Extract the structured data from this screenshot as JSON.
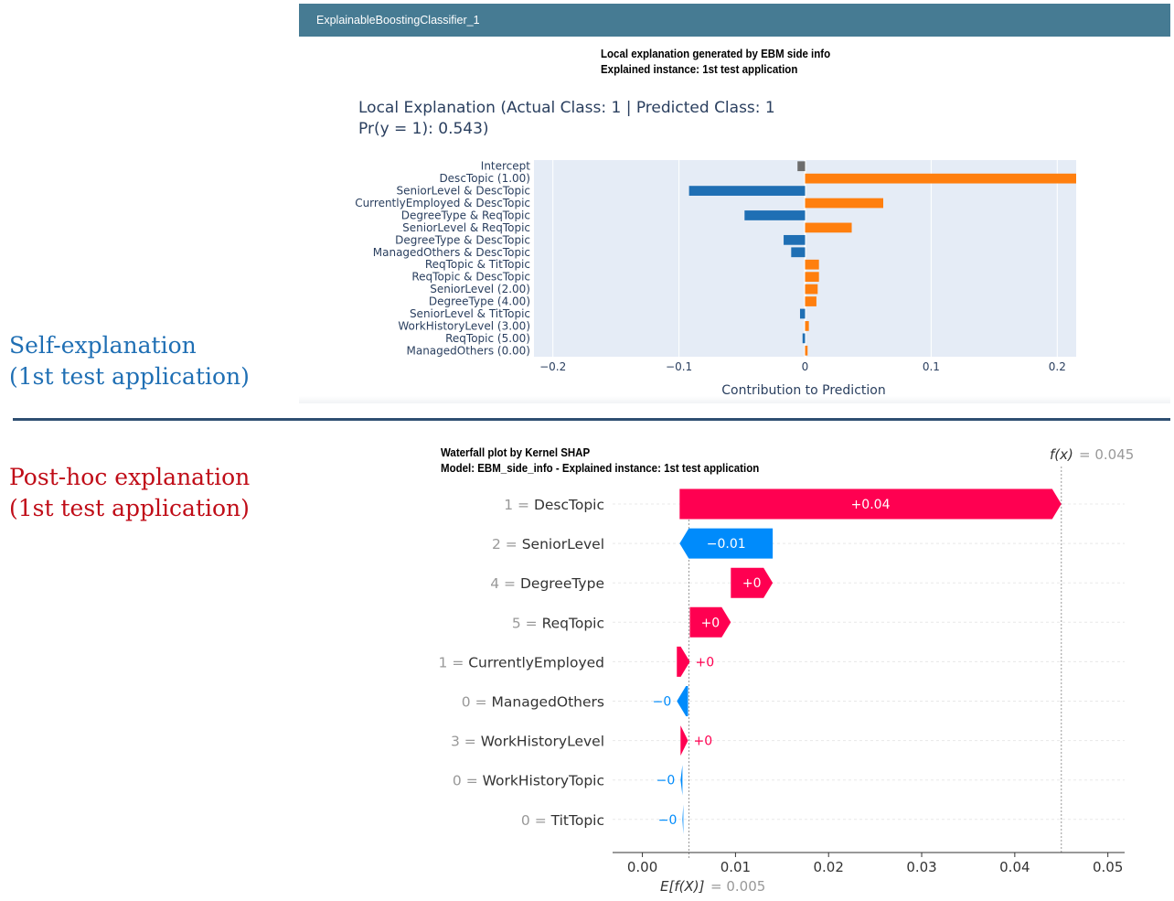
{
  "labels": {
    "self": [
      "Self-explanation",
      "(1st test application)"
    ],
    "posthoc": [
      "Post-hoc explanation",
      "(1st test application)"
    ],
    "self_color": "#1f6fb4",
    "posthoc_color": "#c00d18"
  },
  "header": {
    "title": "ExplainableBoostingClassifier_1",
    "color": "#467b93"
  },
  "ebm": {
    "subtitle": [
      "Local explanation generated by EBM side info",
      "Explained instance: 1st test application"
    ],
    "title_lines": [
      "Local Explanation (Actual Class: 1 | Predicted Class: 1",
      "Pr(y = 1): 0.543)"
    ]
  },
  "shap": {
    "subtitle": [
      "Waterfall plot by Kernel SHAP",
      "Model: EBM_side_info - Explained instance: 1st test application"
    ],
    "fx_label": "f(x)",
    "fx_value": "= 0.045",
    "efx_label": "E[f(X)]",
    "efx_value": "= 0.005"
  },
  "chart_data": [
    {
      "type": "bar",
      "orientation": "horizontal",
      "title": "Local Explanation (Actual Class: 1 | Predicted Class: 1 Pr(y = 1): 0.543)",
      "xlabel": "Contribution to Prediction",
      "xlim": [
        -0.215,
        0.215
      ],
      "xticks": [
        -0.2,
        -0.1,
        0,
        0.1,
        0.2
      ],
      "xtick_labels": [
        "−0.2",
        "−0.1",
        "0",
        "0.1",
        "0.2"
      ],
      "grid": true,
      "colors": {
        "positive": "#ff7f0e",
        "negative": "#1f6fb4",
        "intercept": "#6d6d6d",
        "background": "#e5ecf6"
      },
      "categories": [
        "Intercept",
        "DescTopic (1.00)",
        "SeniorLevel & DescTopic",
        "CurrentlyEmployed & DescTopic",
        "DegreeType & ReqTopic",
        "SeniorLevel & ReqTopic",
        "DegreeType & DescTopic",
        "ManagedOthers & DescTopic",
        "ReqTopic & TitTopic",
        "ReqTopic & DescTopic",
        "SeniorLevel (2.00)",
        "DegreeType (4.00)",
        "SeniorLevel & TitTopic",
        "WorkHistoryLevel (3.00)",
        "ReqTopic (5.00)",
        "ManagedOthers (0.00)"
      ],
      "values": [
        -0.006,
        0.215,
        -0.092,
        0.062,
        -0.048,
        0.037,
        -0.017,
        -0.011,
        0.011,
        0.011,
        0.01,
        0.009,
        -0.004,
        0.003,
        -0.002,
        0.002
      ]
    },
    {
      "type": "waterfall",
      "title": "Waterfall plot by Kernel SHAP",
      "base_value": 0.005,
      "final_value": 0.045,
      "xlim": [
        -0.0032,
        0.0518
      ],
      "xticks": [
        0.0,
        0.01,
        0.02,
        0.03,
        0.04,
        0.05
      ],
      "xtick_labels": [
        "0.00",
        "0.01",
        "0.02",
        "0.03",
        "0.04",
        "0.05"
      ],
      "colors": {
        "positive": "#ff0051",
        "negative": "#008bfb"
      },
      "features": [
        {
          "value": "1",
          "name": "DescTopic",
          "shap": 0.041,
          "label": "+0.04"
        },
        {
          "value": "2",
          "name": "SeniorLevel",
          "shap": -0.01,
          "label": "−0.01"
        },
        {
          "value": "4",
          "name": "DegreeType",
          "shap": 0.0045,
          "label": "+0"
        },
        {
          "value": "5",
          "name": "ReqTopic",
          "shap": 0.0044,
          "label": "+0"
        },
        {
          "value": "1",
          "name": "CurrentlyEmployed",
          "shap": 0.0014,
          "label": "+0"
        },
        {
          "value": "0",
          "name": "ManagedOthers",
          "shap": -0.0012,
          "label": "−0"
        },
        {
          "value": "3",
          "name": "WorkHistoryLevel",
          "shap": 0.0008,
          "label": "+0"
        },
        {
          "value": "0",
          "name": "WorkHistoryTopic",
          "shap": -0.0002,
          "label": "−0"
        },
        {
          "value": "0",
          "name": "TitTopic",
          "shap": -0.0001,
          "label": "−0"
        }
      ]
    }
  ]
}
